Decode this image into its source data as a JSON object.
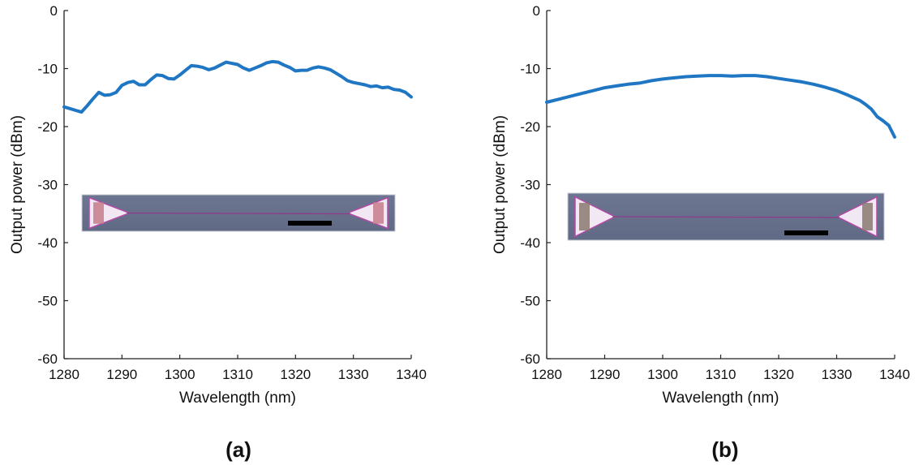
{
  "chart_data": [
    {
      "type": "line",
      "panel_label": "(a)",
      "xlabel": "Wavelength (nm)",
      "ylabel": "Output power (dBm)",
      "xlim": [
        1280,
        1340
      ],
      "ylim": [
        -60,
        0
      ],
      "xticks": [
        1280,
        1290,
        1300,
        1310,
        1320,
        1330,
        1340
      ],
      "yticks": [
        0,
        -10,
        -20,
        -30,
        -40,
        -50,
        -60
      ],
      "grid": false,
      "line_color": "#1f77c4",
      "inset_image": "microscope image of tapered waveguide with grating couplers and black scale bar",
      "series": [
        {
          "x": [
            1280,
            1281,
            1282,
            1283,
            1284,
            1285,
            1286,
            1287,
            1288,
            1289,
            1290,
            1291,
            1292,
            1293,
            1294,
            1295,
            1296,
            1297,
            1298,
            1299,
            1300,
            1301,
            1302,
            1303,
            1304,
            1305,
            1306,
            1307,
            1308,
            1309,
            1310,
            1311,
            1312,
            1313,
            1314,
            1315,
            1316,
            1317,
            1318,
            1319,
            1320,
            1321,
            1322,
            1323,
            1324,
            1325,
            1326,
            1327,
            1328,
            1329,
            1330,
            1331,
            1332,
            1333,
            1334,
            1335,
            1336,
            1337,
            1338,
            1339,
            1340
          ],
          "values": [
            -16.6,
            -16.9,
            -17.2,
            -17.5,
            -16.4,
            -15.2,
            -14.1,
            -14.6,
            -14.5,
            -14.1,
            -12.9,
            -12.4,
            -12.2,
            -12.8,
            -12.8,
            -11.9,
            -11.1,
            -11.2,
            -11.7,
            -11.8,
            -11.1,
            -10.3,
            -9.5,
            -9.6,
            -9.8,
            -10.2,
            -9.9,
            -9.4,
            -8.9,
            -9.1,
            -9.3,
            -9.9,
            -10.3,
            -9.9,
            -9.5,
            -9.0,
            -8.8,
            -8.9,
            -9.4,
            -9.8,
            -10.4,
            -10.3,
            -10.3,
            -9.9,
            -9.7,
            -9.9,
            -10.2,
            -10.8,
            -11.4,
            -12.1,
            -12.4,
            -12.6,
            -12.8,
            -13.1,
            -13.0,
            -13.3,
            -13.2,
            -13.6,
            -13.7,
            -14.1,
            -14.9
          ]
        }
      ]
    },
    {
      "type": "line",
      "panel_label": "(b)",
      "xlabel": "Wavelength (nm)",
      "ylabel": "Output power (dBm)",
      "xlim": [
        1280,
        1340
      ],
      "ylim": [
        -60,
        0
      ],
      "xticks": [
        1280,
        1290,
        1300,
        1310,
        1320,
        1330,
        1340
      ],
      "yticks": [
        0,
        -10,
        -20,
        -30,
        -40,
        -50,
        -60
      ],
      "grid": false,
      "line_color": "#1f77c4",
      "inset_image": "microscope image of tapered waveguide with grating couplers and black scale bar",
      "series": [
        {
          "x": [
            1280,
            1282,
            1284,
            1286,
            1288,
            1290,
            1292,
            1294,
            1296,
            1298,
            1300,
            1302,
            1304,
            1306,
            1308,
            1310,
            1312,
            1314,
            1316,
            1318,
            1320,
            1322,
            1324,
            1326,
            1328,
            1330,
            1332,
            1334,
            1335,
            1336,
            1337,
            1338,
            1339,
            1340
          ],
          "values": [
            -15.8,
            -15.3,
            -14.8,
            -14.3,
            -13.8,
            -13.3,
            -13.0,
            -12.7,
            -12.5,
            -12.1,
            -11.8,
            -11.6,
            -11.4,
            -11.3,
            -11.2,
            -11.2,
            -11.3,
            -11.2,
            -11.2,
            -11.4,
            -11.7,
            -12.0,
            -12.3,
            -12.7,
            -13.2,
            -13.8,
            -14.6,
            -15.5,
            -16.2,
            -17.0,
            -18.3,
            -19.0,
            -19.8,
            -21.8
          ]
        }
      ]
    }
  ]
}
